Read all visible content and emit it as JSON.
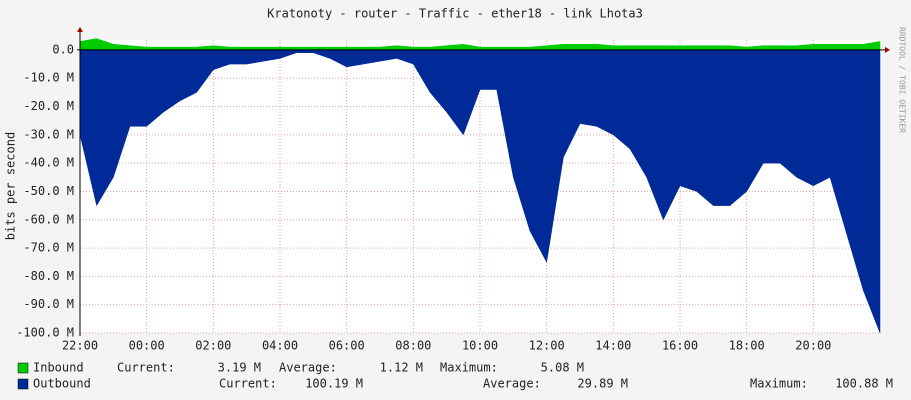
{
  "chart_data": {
    "type": "area",
    "title": "Kratonoty - router - Traffic - ether18 - link Lhota3",
    "y_label": "bits per second",
    "watermark": "RRDTOOL / TOBI OETIKER",
    "grid": true,
    "x": [
      "22:00",
      "22:30",
      "23:00",
      "23:30",
      "00:00",
      "00:30",
      "01:00",
      "01:30",
      "02:00",
      "02:30",
      "03:00",
      "03:30",
      "04:00",
      "04:30",
      "05:00",
      "05:30",
      "06:00",
      "06:30",
      "07:00",
      "07:30",
      "08:00",
      "08:30",
      "09:00",
      "09:30",
      "10:00",
      "10:30",
      "11:00",
      "11:30",
      "12:00",
      "12:30",
      "13:00",
      "13:30",
      "14:00",
      "14:30",
      "15:00",
      "15:30",
      "16:00",
      "16:30",
      "17:00",
      "17:30",
      "18:00",
      "18:30",
      "19:00",
      "19:30",
      "20:00",
      "20:30",
      "21:00",
      "21:30",
      "22:00"
    ],
    "xticks": [
      "22:00",
      "00:00",
      "02:00",
      "04:00",
      "06:00",
      "08:00",
      "10:00",
      "12:00",
      "14:00",
      "16:00",
      "18:00",
      "20:00"
    ],
    "ylim": [
      -100,
      3.5
    ],
    "yticks": [
      {
        "value": 0,
        "label": "0.0"
      },
      {
        "value": -10,
        "label": "-10.0 M"
      },
      {
        "value": -20,
        "label": "-20.0 M"
      },
      {
        "value": -30,
        "label": "-30.0 M"
      },
      {
        "value": -40,
        "label": "-40.0 M"
      },
      {
        "value": -50,
        "label": "-50.0 M"
      },
      {
        "value": -60,
        "label": "-60.0 M"
      },
      {
        "value": -70,
        "label": "-70.0 M"
      },
      {
        "value": -80,
        "label": "-80.0 M"
      },
      {
        "value": -90,
        "label": "-90.0 M"
      },
      {
        "value": -100,
        "label": "-100.0 M"
      }
    ],
    "series": [
      {
        "name": "Inbound",
        "color": "#00cc00",
        "values": [
          3,
          4,
          2,
          1.5,
          1,
          1,
          1,
          1,
          1.5,
          1,
          1,
          1,
          1,
          1,
          1,
          1,
          1,
          1,
          1,
          1.5,
          1,
          1,
          1.5,
          2,
          1,
          1,
          1,
          1,
          1.5,
          2,
          2,
          2,
          1.5,
          1.5,
          1.5,
          1.5,
          1.5,
          1.5,
          1.5,
          1.5,
          1,
          1.5,
          1.5,
          1.5,
          2,
          2,
          2,
          2,
          3
        ],
        "stats": [
          {
            "label": "Current:",
            "value": "3.19 M"
          },
          {
            "label": "Average:",
            "value": "1.12 M"
          },
          {
            "label": "Maximum:",
            "value": "5.08 M"
          }
        ]
      },
      {
        "name": "Outbound",
        "color": "#002a97",
        "values": [
          -30,
          -55,
          -45,
          -27,
          -27,
          -22,
          -18,
          -15,
          -7,
          -5,
          -5,
          -4,
          -3,
          -1,
          -1,
          -3,
          -6,
          -5,
          -4,
          -3,
          -5,
          -15,
          -22,
          -30,
          -14,
          -14,
          -45,
          -64,
          -75,
          -38,
          -26,
          -27,
          -30,
          -35,
          -45,
          -60,
          -48,
          -50,
          -55,
          -55,
          -50,
          -40,
          -40,
          -45,
          -48,
          -45,
          -65,
          -85,
          -100
        ],
        "stats": [
          {
            "label": "Current:",
            "value": "100.19 M"
          },
          {
            "label": "Average:",
            "value": "29.89 M"
          },
          {
            "label": "Maximum:",
            "value": "100.88 M"
          }
        ]
      }
    ]
  }
}
